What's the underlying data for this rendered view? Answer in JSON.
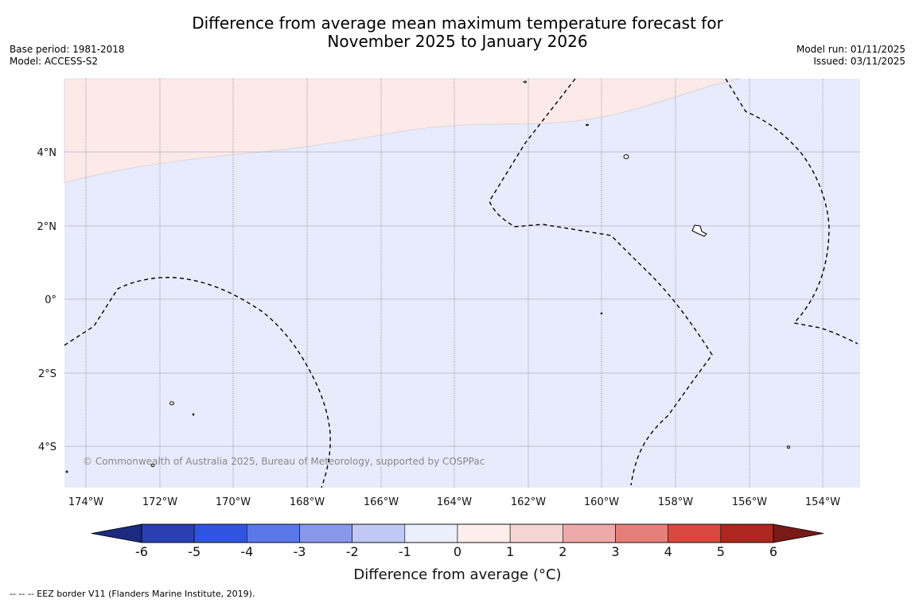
{
  "title_line1": "Difference from average mean maximum temperature forecast for",
  "title_line2": "November 2025 to January 2026",
  "meta_left": {
    "base_period": "Base period: 1981-2018",
    "model": "Model: ACCESS-S2"
  },
  "meta_right": {
    "model_run": "Model run: 01/11/2025",
    "issued": "Issued: 03/11/2025"
  },
  "lon_labels": [
    "174°W",
    "172°W",
    "170°W",
    "168°W",
    "166°W",
    "164°W",
    "162°W",
    "160°W",
    "158°W",
    "156°W",
    "154°W"
  ],
  "lat_labels": [
    "4°N",
    "2°N",
    "0°",
    "2°S",
    "4°S"
  ],
  "copyright": "© Commonwealth of Australia 2025, Bureau of Meteorology, supported by COSPPac",
  "colorbar": {
    "ticks": [
      "-6",
      "-5",
      "-4",
      "-3",
      "-2",
      "-1",
      "0",
      "1",
      "2",
      "3",
      "4",
      "5",
      "6"
    ],
    "colors": [
      "#2a3fb0",
      "#2f55e0",
      "#5a78e8",
      "#8899ec",
      "#c0c8f5",
      "#ebeffc",
      "#fdeeec",
      "#f5d5d2",
      "#eeaaaa",
      "#e57f79",
      "#d9483f",
      "#ad2620"
    ],
    "under_color": "#1c2a80",
    "over_color": "#7a1a16",
    "label": "Difference from average (°C)"
  },
  "map_colors": {
    "warm_region": "#fbeae8",
    "cool_region": "#e8ebfb"
  },
  "footnote": "-- -- -- EEZ border V11 (Flanders Marine Institute, 2019)."
}
